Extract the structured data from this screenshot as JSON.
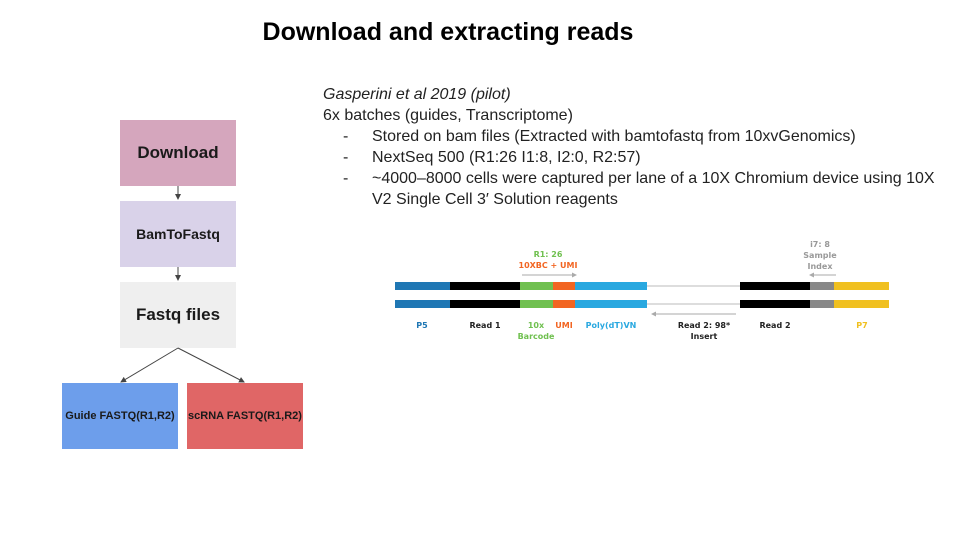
{
  "title": "Download and extracting reads",
  "flow": {
    "download": "Download",
    "bam": "BamToFastq",
    "fastq": "Fastq files",
    "guide": {
      "line1": "Guide FASTQ",
      "line2": "(R1,R2)"
    },
    "scrna": {
      "line1": "scRNA FASTQ",
      "line2": "(R1,R2)"
    }
  },
  "text": {
    "citation": "Gasperini et al 2019",
    "citation_note": " (pilot)",
    "batches": "6x batches (guides, Transcriptome)",
    "bullets": [
      "Stored on bam files (Extracted with bamtofastq from 10xvGenomics)",
      "NextSeq 500   (R1:26 I1:8, I2:0, R2:57)",
      "~4000–8000 cells were captured per lane of a 10X Chromium device using 10X V2 Single Cell 3′ Solution reagents"
    ]
  },
  "library": {
    "r1_title": "R1: 26",
    "r1_sub": "10XBC + UMI",
    "i7_title": "i7: 8",
    "i7_sub1": "Sample",
    "i7_sub2": "Index",
    "labels": {
      "p5": "P5",
      "read1": "Read 1",
      "bc1": "10x",
      "bc2": "Barcode",
      "umi": "UMI",
      "polydt": "Poly(dT)VN",
      "read2ins1": "Read 2: 98*",
      "read2ins2": "Insert",
      "read2": "Read 2",
      "p7": "P7"
    },
    "colors": {
      "p5": "#1f77b4",
      "read": "#000000",
      "barcode": "#70c050",
      "umi": "#f26522",
      "polydt": "#29a8e0",
      "index": "#888888",
      "p7": "#f0c020"
    }
  }
}
